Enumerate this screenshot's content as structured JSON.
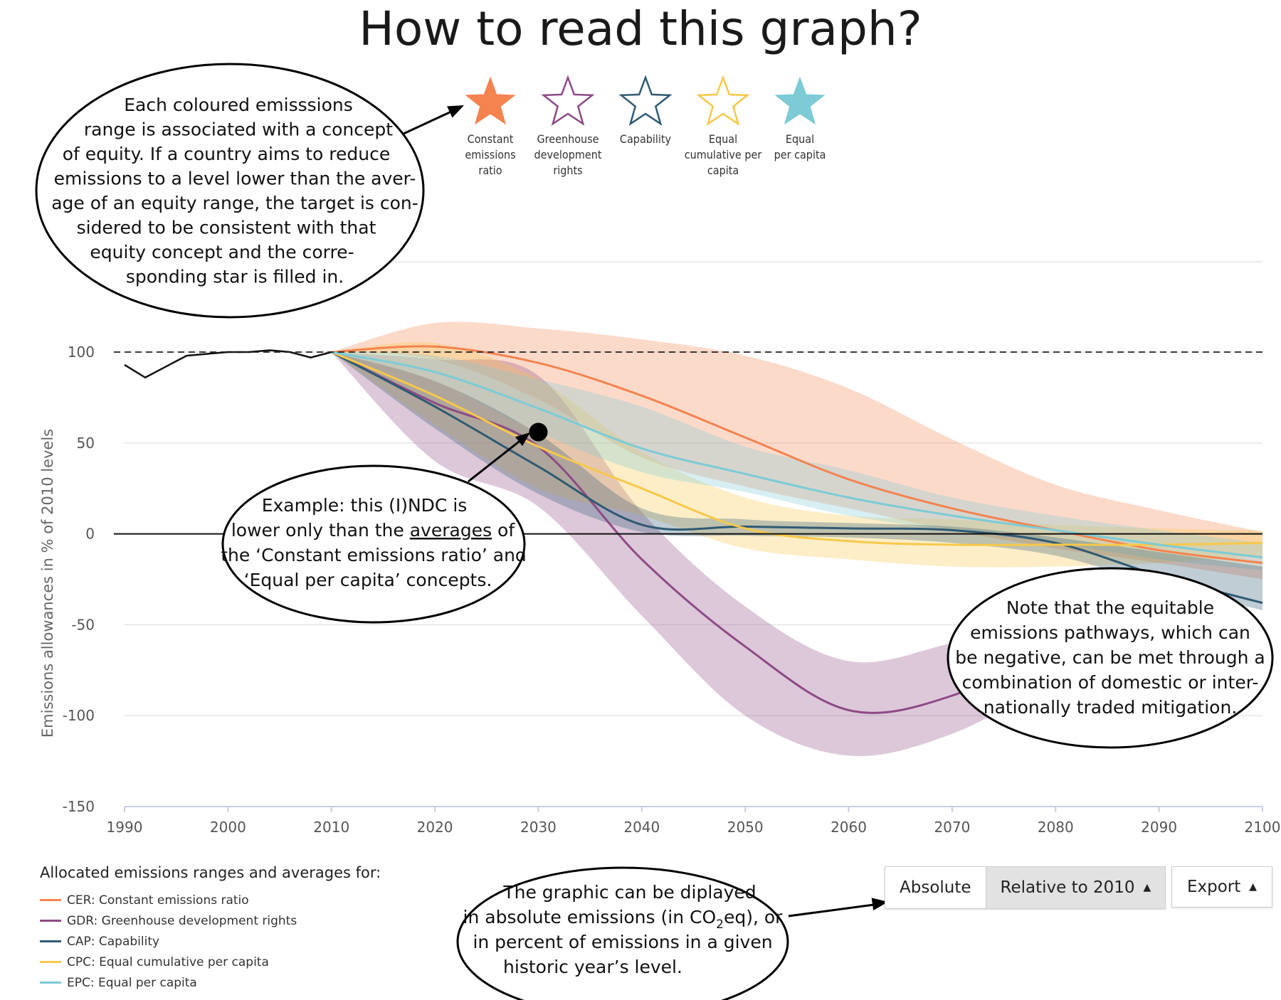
{
  "page": {
    "title": "How to read this graph?"
  },
  "stars": [
    {
      "key": "cer",
      "label": [
        "Constant",
        "emissions",
        "ratio"
      ],
      "color": "#f4834f",
      "filled": true,
      "icon": "filled-star-icon"
    },
    {
      "key": "gdr",
      "label": [
        "Greenhouse",
        "development",
        "rights"
      ],
      "color": "#8e4a86",
      "filled": false,
      "icon": "outline-star-icon"
    },
    {
      "key": "cap",
      "label": [
        "Capability"
      ],
      "color": "#2f5a73",
      "filled": false,
      "icon": "outline-star-icon"
    },
    {
      "key": "cpc",
      "label": [
        "Equal",
        "cumulative per",
        "capita"
      ],
      "color": "#f7c84a",
      "filled": false,
      "icon": "outline-star-icon"
    },
    {
      "key": "epc",
      "label": [
        "Equal",
        "per capita"
      ],
      "color": "#7ccbd6",
      "filled": true,
      "icon": "filled-star-icon"
    }
  ],
  "callouts": {
    "equity": [
      "Each coloured emisssions",
      "range is associated with a concept",
      "of equity. If a country aims to reduce",
      "emissions to a level lower than the aver-",
      "age of an equity range, the target is con-",
      "sidered to be consistent with that",
      "equity concept and the corre-",
      "sponding star is filled in."
    ],
    "example": {
      "lines": [
        "Example: this (I)NDC is",
        "lower only than the ",
        "the ‘Constant emissions ratio’ and",
        "‘Equal per capita’ concepts."
      ],
      "underlined": "averages",
      "after_underlined": " of"
    },
    "negative": [
      "Note that the equitable",
      "emissions pathways, which can",
      "be negative, can be met through a",
      "combination of domestic or inter-",
      "nationally traded mitigation."
    ],
    "display": {
      "line1": "The graphic can be diplayed",
      "line2_before": "in absolute emissions (in CO",
      "line2_sub": "2",
      "line2_after": "eq), or",
      "line3": "in percent of emissions in a given",
      "line4": "historic year’s level."
    }
  },
  "legend": {
    "title": "Allocated emissions ranges and averages for:",
    "items": [
      {
        "label": "CER: Constant emissions ratio",
        "color": "#f4834f"
      },
      {
        "label": "GDR: Greenhouse development rights",
        "color": "#8e4a86"
      },
      {
        "label": "CAP: Capability",
        "color": "#2f5a73"
      },
      {
        "label": "CPC: Equal cumulative per capita",
        "color": "#f7c84a"
      },
      {
        "label": "EPC: Equal per capita",
        "color": "#7ccbd6"
      }
    ]
  },
  "controls": {
    "absolute_label": "Absolute",
    "relative_label": "Relative to 2010",
    "export_label": "Export",
    "caret": "▲"
  },
  "chart_data": {
    "type": "area",
    "xlabel": "",
    "ylabel": "Emissions allowances in % of 2010 levels",
    "xlim": [
      1990,
      2100
    ],
    "ylim": [
      -150,
      150
    ],
    "x_ticks": [
      1990,
      2000,
      2010,
      2020,
      2030,
      2040,
      2050,
      2060,
      2070,
      2080,
      2090,
      2100
    ],
    "y_ticks": [
      100,
      50,
      0,
      -50,
      -100,
      -150
    ],
    "grid": true,
    "reference_line": 100,
    "ndc_point": {
      "x": 2030,
      "y": 56
    },
    "history": {
      "x": [
        1990,
        1992,
        1994,
        1996,
        1998,
        2000,
        2002,
        2004,
        2006,
        2008,
        2010
      ],
      "y": [
        93,
        86,
        92,
        98,
        99,
        100,
        100,
        101,
        100,
        97,
        100
      ]
    },
    "series": [
      {
        "name": "CER: Constant emissions ratio",
        "color": "#f4834f",
        "x": [
          2010,
          2020,
          2030,
          2040,
          2050,
          2060,
          2070,
          2080,
          2090,
          2100
        ],
        "mean": [
          100,
          103,
          94,
          76,
          53,
          30,
          14,
          2,
          -9,
          -16
        ],
        "upper": [
          100,
          116,
          113,
          107,
          98,
          80,
          52,
          27,
          13,
          1
        ],
        "lower": [
          100,
          96,
          74,
          42,
          26,
          14,
          2,
          -8,
          -16,
          -25
        ]
      },
      {
        "name": "GDR: Greenhouse development rights",
        "color": "#8e4a86",
        "x": [
          2010,
          2020,
          2030,
          2040,
          2050,
          2060,
          2070,
          2080
        ],
        "mean": [
          100,
          72,
          48,
          -14,
          -62,
          -97,
          -89,
          -60
        ],
        "upper": [
          100,
          96,
          87,
          12,
          -40,
          -70,
          -60,
          -45
        ],
        "lower": [
          100,
          40,
          15,
          -45,
          -100,
          -122,
          -110,
          -80
        ]
      },
      {
        "name": "CAP: Capability",
        "color": "#2f5a73",
        "x": [
          2010,
          2020,
          2030,
          2040,
          2050,
          2060,
          2070,
          2080,
          2090,
          2100
        ],
        "mean": [
          100,
          70,
          37,
          5,
          4,
          3,
          2,
          -5,
          -23,
          -38
        ],
        "upper": [
          100,
          84,
          55,
          14,
          8,
          6,
          4,
          -2,
          -10,
          -18
        ],
        "lower": [
          100,
          58,
          22,
          1,
          -1,
          -2,
          -5,
          -12,
          -28,
          -42
        ]
      },
      {
        "name": "CPC: Equal cumulative per capita",
        "color": "#f7c84a",
        "x": [
          2010,
          2020,
          2030,
          2040,
          2050,
          2060,
          2070,
          2080,
          2090,
          2100
        ],
        "mean": [
          100,
          76,
          48,
          25,
          3,
          -4,
          -6,
          -6,
          -6,
          -5
        ],
        "upper": [
          100,
          105,
          85,
          45,
          20,
          10,
          8,
          5,
          3,
          2
        ],
        "lower": [
          100,
          60,
          25,
          10,
          -8,
          -14,
          -18,
          -18,
          -16,
          -12
        ]
      },
      {
        "name": "EPC: Equal per capita",
        "color": "#7ccbd6",
        "x": [
          2010,
          2020,
          2030,
          2040,
          2050,
          2060,
          2070,
          2080,
          2090,
          2100
        ],
        "mean": [
          100,
          89,
          69,
          47,
          33,
          20,
          10,
          2,
          -6,
          -13
        ],
        "upper": [
          100,
          98,
          85,
          70,
          48,
          35,
          20,
          10,
          2,
          -5
        ],
        "lower": [
          100,
          84,
          56,
          34,
          23,
          10,
          2,
          -5,
          -14,
          -20
        ]
      }
    ]
  }
}
